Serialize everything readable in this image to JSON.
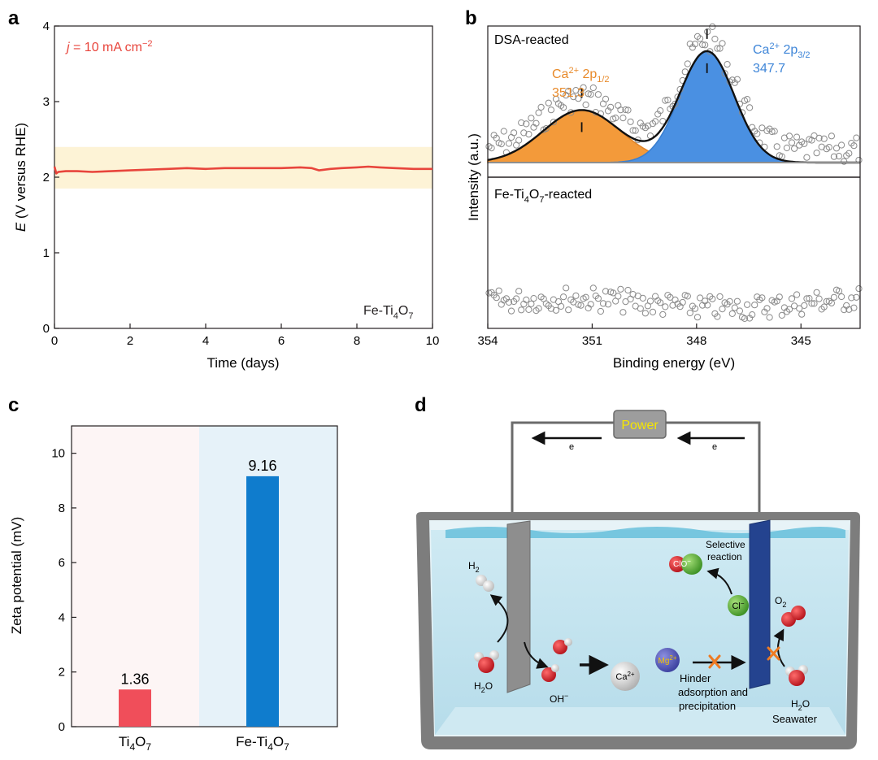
{
  "panels": {
    "a": "a",
    "b": "b",
    "c": "c",
    "d": "d"
  },
  "colors": {
    "red": "#e8453c",
    "pink": "#f04e5a",
    "orange": "#f39a3a",
    "blue": "#4a90e2",
    "band": "#fdf3d6",
    "bar_blue": "#0f7ccd",
    "bg_pink": "#fdf5f5",
    "bg_blue": "#e6f2f9",
    "fit_gray": "#8f8f8f"
  },
  "chart_data": [
    {
      "id": "a",
      "type": "line",
      "xlabel": "Time (days)",
      "ylabel_italic": "E",
      "ylabel_rest": " (V versus RHE)",
      "xlim": [
        0,
        10
      ],
      "ylim": [
        0,
        4
      ],
      "xticks": [
        0,
        2,
        4,
        6,
        8,
        10
      ],
      "yticks": [
        0,
        1,
        2,
        3,
        4
      ],
      "band": [
        1.85,
        2.4
      ],
      "annotation": {
        "prefix": "j",
        "text": " = 10 mA cm",
        "sup": "−2"
      },
      "sample": {
        "base": "Fe-Ti",
        "sub1": "4",
        "mid": "O",
        "sub2": "7"
      },
      "series": [
        {
          "name": "Fe-Ti4O7",
          "x": [
            0,
            0.05,
            0.1,
            0.3,
            0.6,
            1,
            1.5,
            2,
            2.5,
            3,
            3.5,
            4,
            4.5,
            5,
            5.5,
            6,
            6.5,
            6.8,
            7,
            7.3,
            7.6,
            8,
            8.3,
            8.6,
            9,
            9.5,
            10
          ],
          "y": [
            2.14,
            2.05,
            2.07,
            2.08,
            2.08,
            2.07,
            2.08,
            2.09,
            2.1,
            2.11,
            2.12,
            2.11,
            2.12,
            2.12,
            2.12,
            2.12,
            2.13,
            2.12,
            2.09,
            2.11,
            2.12,
            2.13,
            2.14,
            2.13,
            2.12,
            2.11,
            2.11
          ]
        }
      ]
    },
    {
      "id": "b",
      "type": "scatter",
      "xlabel": "Binding energy (eV)",
      "ylabel": "Intensity (a.u.)",
      "xlim": [
        354,
        343.3
      ],
      "xticks": [
        354,
        351,
        348,
        345
      ],
      "top_label": "DSA-reacted",
      "bottom_label": {
        "base": "Fe-Ti",
        "sub1": "4",
        "mid": "O",
        "sub2": "7",
        "tail": "-reacted"
      },
      "peak1": {
        "pre": "Ca",
        "sup": "2+",
        "mid": " 2p",
        "sub": "1/2",
        "energy": "351.3",
        "center": 351.3,
        "amplitude": 0.34,
        "sigma": 1.1
      },
      "peak2": {
        "pre": "Ca",
        "sup": "2+",
        "mid": " 2p",
        "sub": "3/2",
        "energy": "347.7",
        "center": 347.7,
        "amplitude": 0.72,
        "sigma": 0.78
      },
      "baseline": 0.0
    },
    {
      "id": "c",
      "type": "bar",
      "ylabel": "Zeta potential (mV)",
      "ylim": [
        0,
        11
      ],
      "yticks": [
        0,
        2,
        4,
        6,
        8,
        10
      ],
      "categories": [
        {
          "base": "Ti",
          "sub1": "4",
          "mid": "O",
          "sub2": "7"
        },
        {
          "base": "Fe-Ti",
          "sub1": "4",
          "mid": "O",
          "sub2": "7"
        }
      ],
      "values": [
        1.36,
        9.16
      ],
      "value_labels": [
        "1.36",
        "9.16"
      ]
    }
  ],
  "diagram": {
    "power": "Power",
    "electron": "e",
    "h2": {
      "base": "H",
      "sub": "2"
    },
    "h2o_left": {
      "base": "H",
      "sub": "2",
      "tail": "O"
    },
    "oh": {
      "base": "OH",
      "sup": "−"
    },
    "ca": {
      "base": "Ca",
      "sup": "2+"
    },
    "mg": {
      "base": "Mg",
      "sup": "2+"
    },
    "cl": {
      "base": "Cl",
      "sup": "−"
    },
    "clo": {
      "base": "ClO",
      "sup": "−"
    },
    "o2": {
      "base": "O",
      "sub": "2"
    },
    "selective_line1": "Selective",
    "selective_line2": "reaction",
    "hinder_line1": "Hinder",
    "hinder_line2": "adsorption and",
    "hinder_line3": "precipitation",
    "h2o_right": {
      "base": "H",
      "sub": "2",
      "tail": "O"
    },
    "seawater": "Seawater"
  }
}
